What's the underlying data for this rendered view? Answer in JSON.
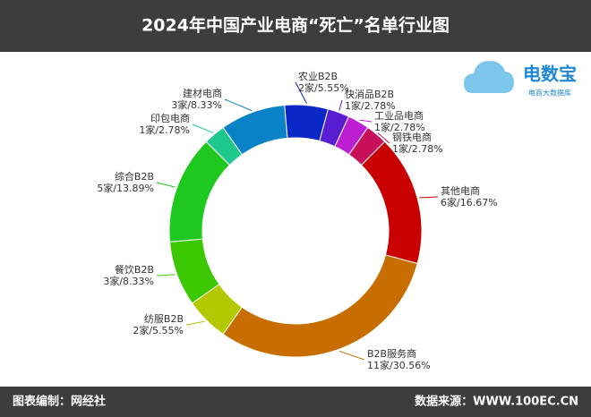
{
  "chart_data": {
    "type": "donut",
    "title": "2024年中国产业电商“死亡”名单行业图",
    "categories": [
      "农业B2B",
      "快消品B2B",
      "工业品电商",
      "钢铁电商",
      "其他电商",
      "B2B服务商",
      "纺服B2B",
      "餐饮B2B",
      "综合B2B",
      "印包电商",
      "建材电商"
    ],
    "values": [
      5.55,
      2.78,
      2.78,
      2.78,
      16.67,
      30.56,
      5.55,
      8.33,
      13.89,
      2.78,
      8.33
    ],
    "value_labels": [
      "2家/5.55%",
      "1家/2.78%",
      "1家/2.78%",
      "1家/2.78%",
      "6家/16.67%",
      "11家/30.56%",
      "2家/5.55%",
      "3家/8.33%",
      "5家/13.89%",
      "1家/2.78%",
      "3家/8.33%"
    ],
    "colors": [
      "#0a28c8",
      "#5a1ed2",
      "#be1ed2",
      "#c8105a",
      "#c80000",
      "#c86e00",
      "#b4c800",
      "#3cc800",
      "#1ec81e",
      "#1ec88c",
      "#0a82c8"
    ]
  },
  "footer": {
    "left": "图表编制：网经社",
    "right": "数据来源：WWW.100EC.CN"
  },
  "logo": {
    "name": "电数宝",
    "subtitle": "电商大数据库"
  }
}
